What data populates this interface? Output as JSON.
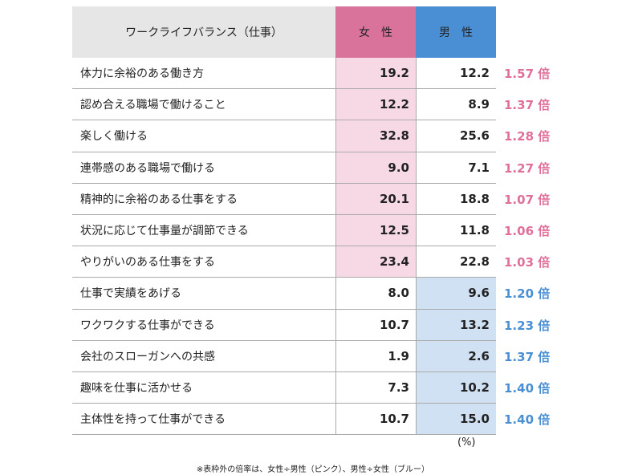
{
  "header": {
    "title": "ワークライフバランス（仕事）",
    "female": "女　性",
    "male": "男　性"
  },
  "table": {
    "rows": [
      [
        "体力に余裕のある働き方",
        "19.2",
        "12.2",
        "1.57 倍"
      ],
      [
        "認め合える職場で働けること",
        "12.2",
        "8.9",
        "1.37 倍"
      ],
      [
        "楽しく働ける",
        "32.8",
        "25.6",
        "1.28 倍"
      ],
      [
        "連帯感のある職場で働ける",
        "9.0",
        "7.1",
        "1.27 倍"
      ],
      [
        "精神的に余裕のある仕事をする",
        "20.1",
        "18.8",
        "1.07 倍"
      ],
      [
        "状況に応じて仕事量が調節できる",
        "12.5",
        "11.8",
        "1.06 倍"
      ],
      [
        "やりがいのある仕事をする",
        "23.4",
        "22.8",
        "1.03 倍"
      ],
      [
        "仕事で実績をあげる",
        "8.0",
        "9.6",
        "1.20 倍"
      ],
      [
        "ワクワクする仕事ができる",
        "10.7",
        "13.2",
        "1.23 倍"
      ],
      [
        "会社のスローガンへの共感",
        "1.9",
        "2.6",
        "1.37 倍"
      ],
      [
        "趣味を仕事に活かせる",
        "7.3",
        "10.2",
        "1.40 倍"
      ],
      [
        "主体性を持って仕事ができる",
        "10.7",
        "15.0",
        "1.40 倍"
      ]
    ]
  },
  "unit": "(%)",
  "note": "※表枠外の倍率は、女性÷男性（ピンク）、男性÷女性（ブルー）"
}
